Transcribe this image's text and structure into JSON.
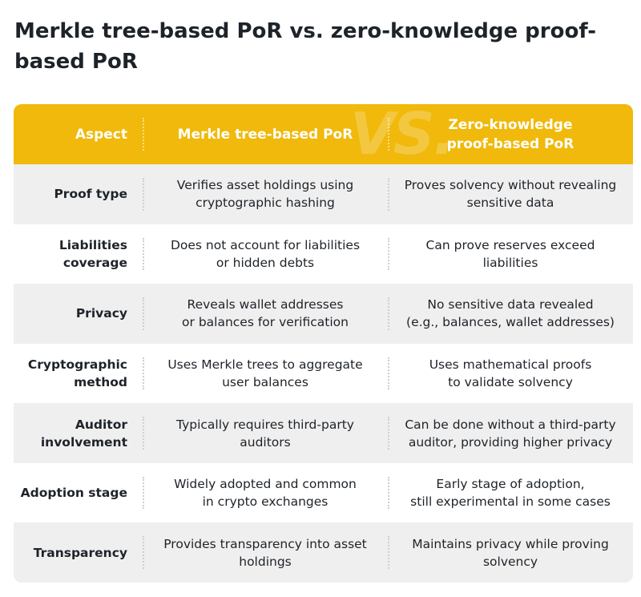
{
  "header": {
    "title": "Merkle tree-based PoR vs. zero-knowledge proof-based PoR"
  },
  "table": {
    "watermark": "VS.",
    "columns": [
      [
        "Aspect"
      ],
      [
        "Merkle tree-based PoR"
      ],
      [
        "Zero-knowledge",
        "proof-based PoR"
      ]
    ],
    "rows": [
      [
        [
          "Proof type"
        ],
        [
          "Verifies asset holdings using",
          "cryptographic hashing"
        ],
        [
          "Proves solvency without revealing",
          "sensitive data"
        ]
      ],
      [
        [
          "Liabilities",
          "coverage"
        ],
        [
          "Does not account for liabilities",
          "or hidden debts"
        ],
        [
          "Can prove reserves exceed",
          "liabilities"
        ]
      ],
      [
        [
          "Privacy"
        ],
        [
          "Reveals wallet addresses",
          "or balances for verification"
        ],
        [
          "No sensitive data revealed",
          "(e.g., balances, wallet addresses)"
        ]
      ],
      [
        [
          "Cryptographic",
          "method"
        ],
        [
          "Uses Merkle trees to aggregate",
          "user balances"
        ],
        [
          "Uses mathematical proofs",
          "to validate solvency"
        ]
      ],
      [
        [
          "Auditor",
          "involvement"
        ],
        [
          "Typically requires third-party",
          "auditors"
        ],
        [
          "Can be done without a third-party",
          "auditor, providing higher privacy"
        ]
      ],
      [
        [
          "Adoption stage"
        ],
        [
          "Widely adopted and common",
          "in crypto exchanges"
        ],
        [
          "Early stage of adoption,",
          "still experimental in some cases"
        ]
      ],
      [
        [
          "Transparency"
        ],
        [
          "Provides transparency into asset",
          "holdings"
        ],
        [
          "Maintains privacy while proving",
          "solvency"
        ]
      ]
    ]
  }
}
